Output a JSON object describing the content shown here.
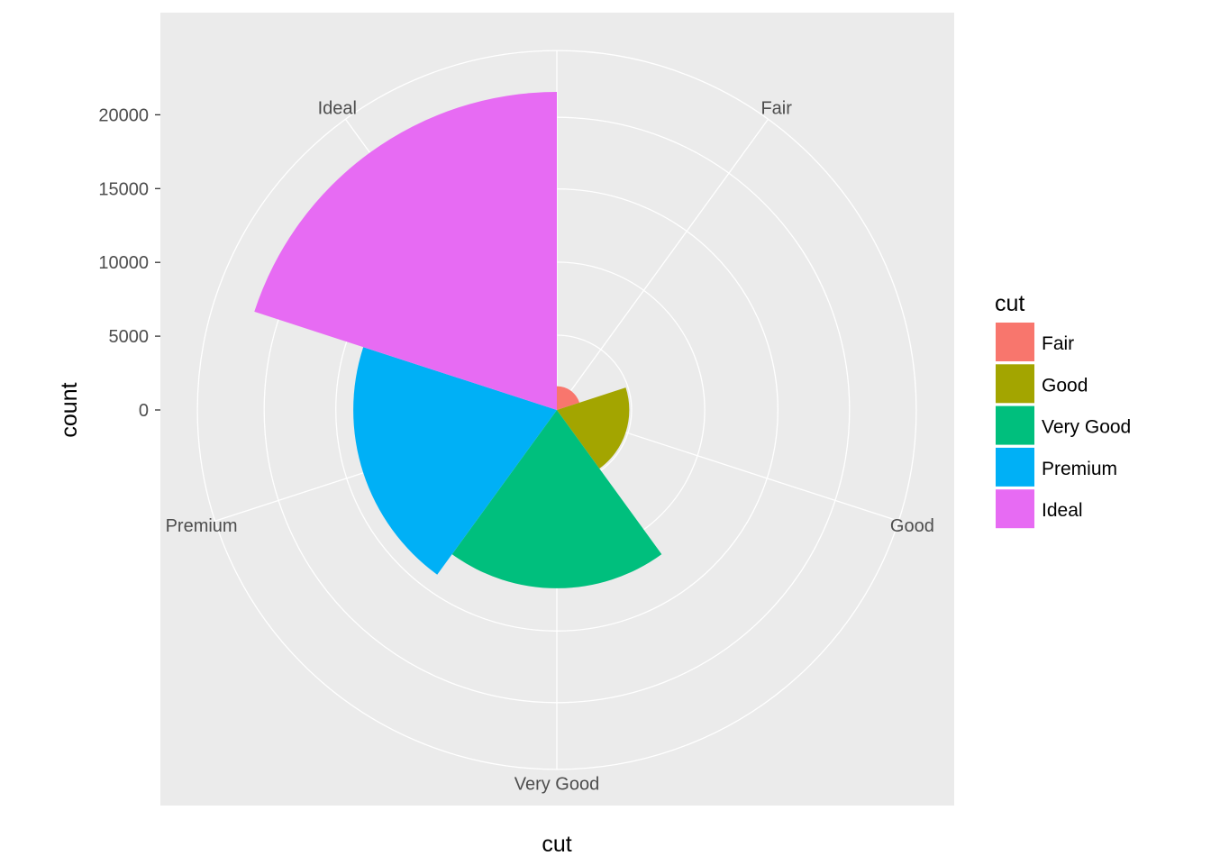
{
  "chart_data": {
    "type": "bar",
    "coord": "polar",
    "categories": [
      "Fair",
      "Good",
      "Very Good",
      "Premium",
      "Ideal"
    ],
    "values": [
      1610,
      4906,
      12082,
      13791,
      21551
    ],
    "colors": [
      "#F8766D",
      "#A3A500",
      "#00BF7D",
      "#00B0F6",
      "#E76BF3"
    ],
    "xlabel": "cut",
    "ylabel": "count",
    "ylim": [
      0,
      21551
    ],
    "y_ticks": [
      0,
      5000,
      10000,
      15000,
      20000
    ],
    "y_tick_labels": [
      "0",
      "5000",
      "10000",
      "15000",
      "20000"
    ],
    "grid": true,
    "legend": {
      "title": "cut",
      "position": "right",
      "items": [
        "Fair",
        "Good",
        "Very Good",
        "Premium",
        "Ideal"
      ]
    }
  }
}
